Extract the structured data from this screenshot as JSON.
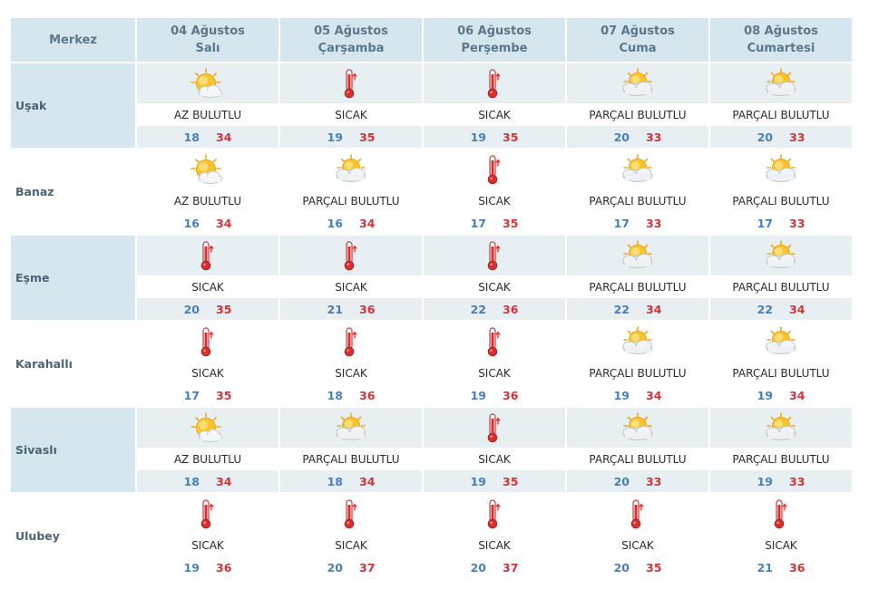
{
  "header": {
    "merkez_label": "Merkez",
    "days": [
      {
        "date": "04 Ağustos",
        "weekday": "Salı"
      },
      {
        "date": "05 Ağustos",
        "weekday": "Çarşamba"
      },
      {
        "date": "06 Ağustos",
        "weekday": "Perşembe"
      },
      {
        "date": "07 Ağustos",
        "weekday": "Cuma"
      },
      {
        "date": "08 Ağustos",
        "weekday": "Cumartesi"
      }
    ]
  },
  "colors": {
    "header_bg": "#d5e6ee",
    "shade_bg": "#e8eff3",
    "min_temp": "#4a7fb6",
    "max_temp": "#d2343a"
  },
  "rows": [
    {
      "city": "Uşak",
      "forecasts": [
        {
          "icon": "sun-cloud-icon",
          "desc": "AZ BULUTLU",
          "min": "18",
          "max": "34"
        },
        {
          "icon": "thermometer-icon",
          "desc": "SICAK",
          "min": "19",
          "max": "35"
        },
        {
          "icon": "thermometer-icon",
          "desc": "SICAK",
          "min": "19",
          "max": "35"
        },
        {
          "icon": "cloud-sun-icon",
          "desc": "PARÇALI BULUTLU",
          "min": "20",
          "max": "33"
        },
        {
          "icon": "cloud-sun-icon",
          "desc": "PARÇALI BULUTLU",
          "min": "20",
          "max": "33"
        }
      ]
    },
    {
      "city": "Banaz",
      "forecasts": [
        {
          "icon": "sun-cloud-icon",
          "desc": "AZ BULUTLU",
          "min": "16",
          "max": "34"
        },
        {
          "icon": "cloud-sun-icon",
          "desc": "PARÇALI BULUTLU",
          "min": "16",
          "max": "34"
        },
        {
          "icon": "thermometer-icon",
          "desc": "SICAK",
          "min": "17",
          "max": "35"
        },
        {
          "icon": "cloud-sun-icon",
          "desc": "PARÇALI BULUTLU",
          "min": "17",
          "max": "33"
        },
        {
          "icon": "cloud-sun-icon",
          "desc": "PARÇALI BULUTLU",
          "min": "17",
          "max": "33"
        }
      ]
    },
    {
      "city": "Eşme",
      "forecasts": [
        {
          "icon": "thermometer-icon",
          "desc": "SICAK",
          "min": "20",
          "max": "35"
        },
        {
          "icon": "thermometer-icon",
          "desc": "SICAK",
          "min": "21",
          "max": "36"
        },
        {
          "icon": "thermometer-icon",
          "desc": "SICAK",
          "min": "22",
          "max": "36"
        },
        {
          "icon": "cloud-sun-icon",
          "desc": "PARÇALI BULUTLU",
          "min": "22",
          "max": "34"
        },
        {
          "icon": "cloud-sun-icon",
          "desc": "PARÇALI BULUTLU",
          "min": "22",
          "max": "34"
        }
      ]
    },
    {
      "city": "Karahallı",
      "forecasts": [
        {
          "icon": "thermometer-icon",
          "desc": "SICAK",
          "min": "17",
          "max": "35"
        },
        {
          "icon": "thermometer-icon",
          "desc": "SICAK",
          "min": "18",
          "max": "36"
        },
        {
          "icon": "thermometer-icon",
          "desc": "SICAK",
          "min": "19",
          "max": "36"
        },
        {
          "icon": "cloud-sun-icon",
          "desc": "PARÇALI BULUTLU",
          "min": "19",
          "max": "34"
        },
        {
          "icon": "cloud-sun-icon",
          "desc": "PARÇALI BULUTLU",
          "min": "19",
          "max": "34"
        }
      ]
    },
    {
      "city": "Sivaslı",
      "forecasts": [
        {
          "icon": "sun-cloud-icon",
          "desc": "AZ BULUTLU",
          "min": "18",
          "max": "34"
        },
        {
          "icon": "cloud-sun-icon",
          "desc": "PARÇALI BULUTLU",
          "min": "18",
          "max": "34"
        },
        {
          "icon": "thermometer-icon",
          "desc": "SICAK",
          "min": "19",
          "max": "35"
        },
        {
          "icon": "cloud-sun-icon",
          "desc": "PARÇALI BULUTLU",
          "min": "20",
          "max": "33"
        },
        {
          "icon": "cloud-sun-icon",
          "desc": "PARÇALI BULUTLU",
          "min": "19",
          "max": "33"
        }
      ]
    },
    {
      "city": "Ulubey",
      "forecasts": [
        {
          "icon": "thermometer-icon",
          "desc": "SICAK",
          "min": "19",
          "max": "36"
        },
        {
          "icon": "thermometer-icon",
          "desc": "SICAK",
          "min": "20",
          "max": "37"
        },
        {
          "icon": "thermometer-icon",
          "desc": "SICAK",
          "min": "20",
          "max": "37"
        },
        {
          "icon": "thermometer-icon",
          "desc": "SICAK",
          "min": "20",
          "max": "35"
        },
        {
          "icon": "thermometer-icon",
          "desc": "SICAK",
          "min": "21",
          "max": "36"
        }
      ]
    }
  ]
}
